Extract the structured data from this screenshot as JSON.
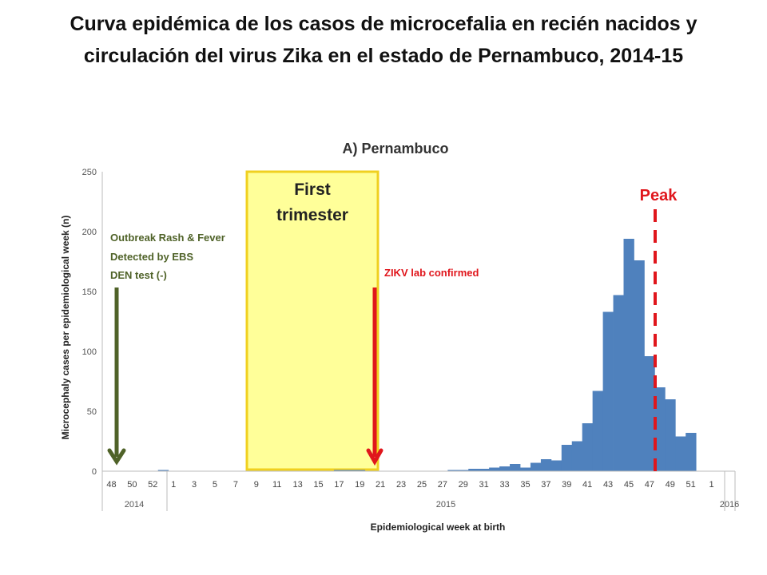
{
  "slide": {
    "title_line1": "Curva epidémica de los casos de microcefalia en recién nacidos y",
    "title_line2": "circulación del virus Zika en el estado de Pernambuco, 2014-15"
  },
  "chart_data": {
    "type": "bar",
    "title": "A) Pernambuco",
    "xlabel": "Epidemiological week at birth",
    "ylabel": "Microcephaly cases per epidemiological week (n)",
    "ylim": [
      0,
      250
    ],
    "yticks": [
      0,
      50,
      100,
      150,
      200,
      250
    ],
    "grid": false,
    "bar_color": "#4f81bd",
    "xtick_labels": [
      "48",
      "50",
      "52",
      "1",
      "3",
      "5",
      "7",
      "9",
      "11",
      "13",
      "15",
      "17",
      "19",
      "21",
      "23",
      "25",
      "27",
      "29",
      "31",
      "33",
      "35",
      "37",
      "39",
      "41",
      "43",
      "45",
      "47",
      "49",
      "51",
      "1"
    ],
    "year_labels": [
      "2014",
      "2015",
      "2016"
    ],
    "weeks": [
      "48",
      "49",
      "50",
      "51",
      "52",
      "1",
      "2",
      "3",
      "4",
      "5",
      "6",
      "7",
      "8",
      "9",
      "10",
      "11",
      "12",
      "13",
      "14",
      "15",
      "16",
      "17",
      "18",
      "19",
      "20",
      "21",
      "22",
      "23",
      "24",
      "25",
      "26",
      "27",
      "28",
      "29",
      "30",
      "31",
      "32",
      "33",
      "34",
      "35",
      "36",
      "37",
      "38",
      "39",
      "40",
      "41",
      "42",
      "43",
      "44",
      "45",
      "46",
      "47",
      "48",
      "49",
      "50",
      "51",
      "52",
      "1"
    ],
    "values": [
      0,
      0,
      0,
      0,
      0,
      1,
      0,
      0,
      0,
      0,
      0,
      0,
      0,
      0,
      0,
      0,
      0,
      0,
      0,
      0,
      0,
      0,
      1,
      1,
      1,
      0,
      0,
      0,
      0,
      0,
      0,
      0,
      0,
      1,
      1,
      2,
      2,
      3,
      4,
      6,
      3,
      7,
      10,
      9,
      22,
      25,
      40,
      67,
      133,
      147,
      194,
      176,
      96,
      70,
      60,
      29,
      32,
      0
    ],
    "annotations": {
      "trimester_label_line1": "First",
      "trimester_label_line2": "trimester",
      "trimester_color": "#ffff99",
      "trimester_border": "#f0d020",
      "outbreak_line1": "Outbreak Rash & Fever",
      "outbreak_line2": "Detected by EBS",
      "outbreak_line3": "DEN test (-)",
      "outbreak_color": "#4f6228",
      "zikv_label": "ZIKV lab confirmed",
      "zikv_color": "#e0161c",
      "peak_label": "Peak",
      "peak_color": "#e0161c"
    }
  }
}
